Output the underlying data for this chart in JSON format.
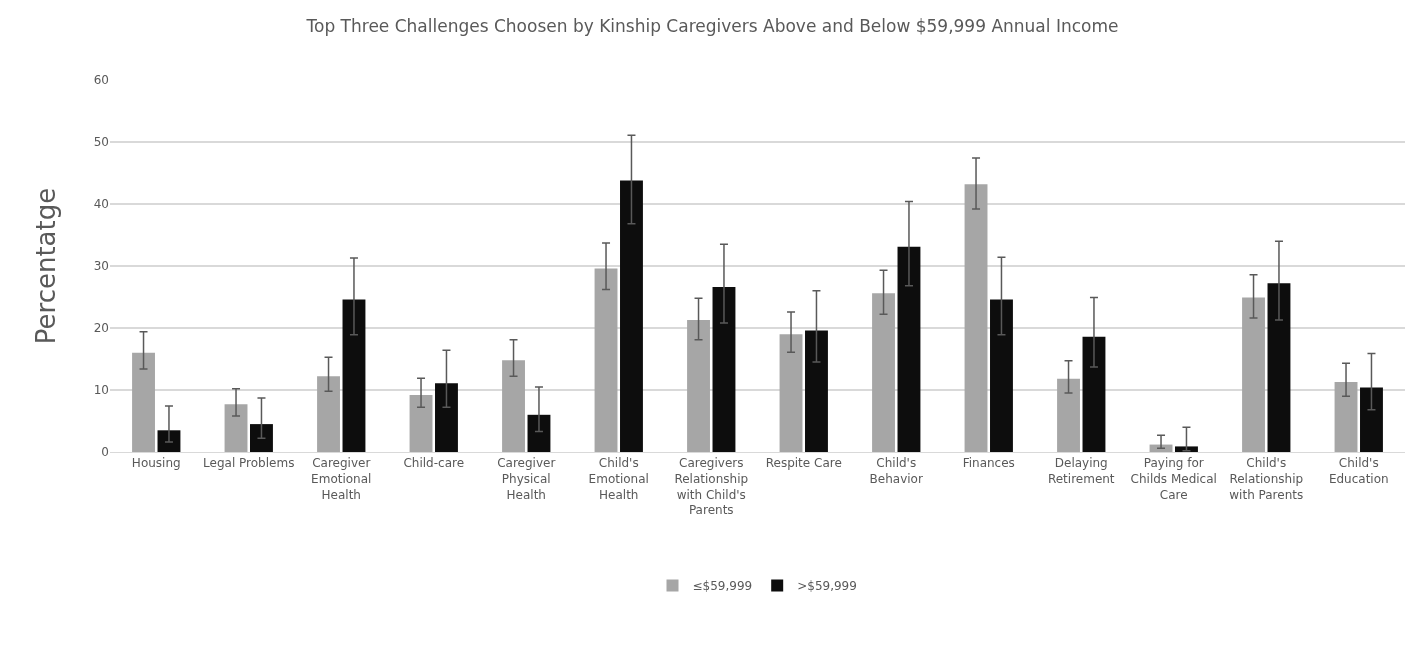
{
  "chart_data": {
    "type": "bar",
    "title": "Top Three Challenges Choosen by Kinship Caregivers Above and Below $59,999 Annual Income",
    "ylabel": "Percentatge",
    "categories": [
      "Housing",
      "Legal Problems",
      "Caregiver Emotional Health",
      "Child-care",
      "Caregiver Physical Health",
      "Child's Emotional Health",
      "Caregivers Relationship with Child's Parents",
      "Respite Care",
      "Child's Behavior",
      "Finances",
      "Delaying Retirement",
      "Paying for Childs Medical Care",
      "Child's Relationship with Parents",
      "Child's Education"
    ],
    "series": [
      {
        "name": "≤$59,999",
        "color": "#a6a6a6",
        "values": [
          16.0,
          7.7,
          12.2,
          9.2,
          14.8,
          29.6,
          21.3,
          19.0,
          25.6,
          43.2,
          11.8,
          1.2,
          24.9,
          11.3
        ],
        "errors": [
          [
            13.4,
            19.4
          ],
          [
            5.8,
            10.2
          ],
          [
            9.8,
            15.3
          ],
          [
            7.2,
            11.9
          ],
          [
            12.2,
            18.1
          ],
          [
            26.2,
            33.7
          ],
          [
            18.1,
            24.8
          ],
          [
            16.1,
            22.6
          ],
          [
            22.2,
            29.3
          ],
          [
            39.2,
            47.4
          ],
          [
            9.5,
            14.7
          ],
          [
            0.6,
            2.7
          ],
          [
            21.6,
            28.6
          ],
          [
            9.0,
            14.3
          ]
        ]
      },
      {
        "name": ">$59,999",
        "color": "#0d0d0d",
        "values": [
          3.5,
          4.5,
          24.6,
          11.1,
          6.0,
          43.8,
          26.6,
          19.6,
          33.1,
          24.6,
          18.6,
          0.9,
          27.2,
          10.4
        ],
        "errors": [
          [
            1.6,
            7.4
          ],
          [
            2.2,
            8.7
          ],
          [
            18.9,
            31.3
          ],
          [
            7.2,
            16.4
          ],
          [
            3.3,
            10.5
          ],
          [
            36.8,
            51.1
          ],
          [
            20.8,
            33.5
          ],
          [
            14.5,
            26.0
          ],
          [
            26.8,
            40.4
          ],
          [
            18.9,
            31.4
          ],
          [
            13.7,
            24.9
          ],
          [
            0.2,
            4.0
          ],
          [
            21.3,
            34.0
          ],
          [
            6.8,
            15.9
          ]
        ]
      }
    ],
    "ylim": [
      0,
      60
    ],
    "yticks": [
      0,
      10,
      20,
      30,
      40,
      50,
      60
    ],
    "grid": "y",
    "legend": "bottom"
  }
}
